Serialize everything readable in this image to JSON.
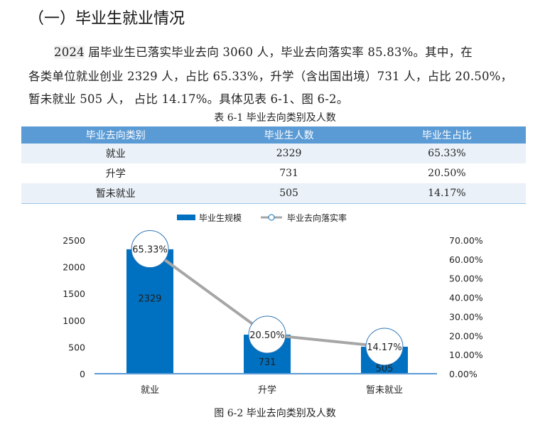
{
  "heading": "（一）毕业生就业情况",
  "paragraph": {
    "year": "2024",
    "line1_rest": " 届毕业生已落实毕业去向 3060 人，毕业去向落实率 85.83%。其中，在",
    "line2": "各类单位就业创业 2329 人，占比 65.33%，升学（含出国出境）731 人，占比 20.50%，",
    "line3": "暂未就业 505 人， 占比 14.17%。具体见表 6-1、图 6-2。"
  },
  "table": {
    "caption": "表 6-1  毕业去向类别及人数",
    "headers": [
      "毕业去向类别",
      "毕业生人数",
      "毕业生占比"
    ],
    "rows": [
      [
        "就业",
        "2329",
        "65.33%"
      ],
      [
        "升学",
        "731",
        "20.50%"
      ],
      [
        "暂未就业",
        "505",
        "14.17%"
      ]
    ]
  },
  "figure_caption": "图 6-2  毕业去向类别及人数",
  "chart_data": {
    "type": "bar",
    "categories": [
      "就业",
      "升学",
      "暂未就业"
    ],
    "series": [
      {
        "name": "毕业生规模",
        "type": "bar",
        "axis": "left",
        "values": [
          2329,
          731,
          505
        ],
        "labels": [
          "2329",
          "731",
          "505"
        ],
        "color": "#0070c0"
      },
      {
        "name": "毕业去向落实率",
        "type": "line",
        "axis": "right",
        "values": [
          65.33,
          20.5,
          14.17
        ],
        "labels": [
          "65.33%",
          "20.50%",
          "14.17%"
        ],
        "color": "#a6a6a6"
      }
    ],
    "ylim": [
      0,
      2500
    ],
    "yticks": [
      "0",
      "500",
      "1000",
      "1500",
      "2000",
      "2500"
    ],
    "y2lim": [
      0,
      70
    ],
    "y2ticks": [
      "0.00%",
      "10.00%",
      "20.00%",
      "30.00%",
      "40.00%",
      "50.00%",
      "60.00%",
      "70.00%"
    ],
    "legend": "top-center"
  }
}
